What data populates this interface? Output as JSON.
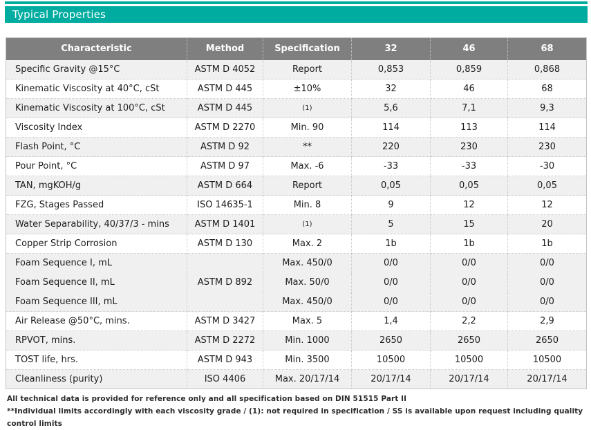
{
  "title": "Typical Properties",
  "colors": {
    "accent": "#00ACA0",
    "header_bg": "#7F7F7F",
    "shaded_row_bg": "#F0F0F0",
    "border": "#C9C9C9"
  },
  "table": {
    "columns": [
      "Characteristic",
      "Method",
      "Specification",
      "32",
      "46",
      "68"
    ],
    "rows": [
      {
        "characteristic": "Specific Gravity @15°C",
        "method": "ASTM D 4052",
        "specification": "Report",
        "values": [
          "0,853",
          "0,859",
          "0,868"
        ],
        "shaded": true
      },
      {
        "characteristic": "Kinematic Viscosity at 40°C, cSt",
        "method": "ASTM D 445",
        "specification": "±10%",
        "values": [
          "32",
          "46",
          "68"
        ],
        "shaded": false
      },
      {
        "characteristic": "Kinematic Viscosity at 100°C, cSt",
        "method": "ASTM D 445",
        "specification": "(1)",
        "spec_small": true,
        "values": [
          "5,6",
          "7,1",
          "9,3"
        ],
        "shaded": true
      },
      {
        "characteristic": "Viscosity Index",
        "method": "ASTM D 2270",
        "specification": "Min. 90",
        "values": [
          "114",
          "113",
          "114"
        ],
        "shaded": false
      },
      {
        "characteristic": "Flash Point, °C",
        "method": "ASTM D 92",
        "specification": "**",
        "values": [
          "220",
          "230",
          "230"
        ],
        "shaded": true
      },
      {
        "characteristic": "Pour Point, °C",
        "method": "ASTM D 97",
        "specification": "Max. -6",
        "values": [
          "-33",
          "-33",
          "-30"
        ],
        "shaded": false
      },
      {
        "characteristic": "TAN, mgKOH/g",
        "method": "ASTM D 664",
        "specification": "Report",
        "values": [
          "0,05",
          "0,05",
          "0,05"
        ],
        "shaded": true
      },
      {
        "characteristic": "FZG, Stages Passed",
        "method": "ISO 14635-1",
        "specification": "Min. 8",
        "values": [
          "9",
          "12",
          "12"
        ],
        "shaded": false
      },
      {
        "characteristic": "Water Separability, 40/37/3 - mins",
        "method": "ASTM D 1401",
        "specification": "(1)",
        "spec_small": true,
        "values": [
          "5",
          "15",
          "20"
        ],
        "shaded": true
      },
      {
        "characteristic": "Copper Strip Corrosion",
        "method": "ASTM D 130",
        "specification": "Max. 2",
        "values": [
          "1b",
          "1b",
          "1b"
        ],
        "shaded": false
      },
      {
        "characteristic": "Foam Sequence I, mL",
        "method": "ASTM D 892",
        "method_rowspan": 3,
        "specification": "Max. 450/0",
        "values": [
          "0/0",
          "0/0",
          "0/0"
        ],
        "shaded": true,
        "group": "foam"
      },
      {
        "characteristic": "Foam Sequence II, mL",
        "specification": "Max. 50/0",
        "values": [
          "0/0",
          "0/0",
          "0/0"
        ],
        "shaded": true,
        "group": "foam"
      },
      {
        "characteristic": "Foam Sequence III, mL",
        "specification": "Max. 450/0",
        "values": [
          "0/0",
          "0/0",
          "0/0"
        ],
        "shaded": true,
        "group": "foam"
      },
      {
        "characteristic": "Air Release @50°C, mins.",
        "method": "ASTM D 3427",
        "specification": "Max. 5",
        "values": [
          "1,4",
          "2,2",
          "2,9"
        ],
        "shaded": false
      },
      {
        "characteristic": "RPVOT, mins.",
        "method": "ASTM D 2272",
        "specification": "Min. 1000",
        "values": [
          "2650",
          "2650",
          "2650"
        ],
        "shaded": true
      },
      {
        "characteristic": "TOST life, hrs.",
        "method": "ASTM D 943",
        "specification": "Min. 3500",
        "values": [
          "10500",
          "10500",
          "10500"
        ],
        "shaded": false
      },
      {
        "characteristic": "Cleanliness (purity)",
        "method": "ISO 4406",
        "specification": "Max. 20/17/14",
        "values": [
          "20/17/14",
          "20/17/14",
          "20/17/14"
        ],
        "shaded": true
      }
    ]
  },
  "footnotes": [
    "All technical data is provided for reference only and all specification based on DIN 51515 Part II",
    "**Individual limits accordingly with each viscosity grade / (1): not required in specification / SS is available upon request including quality control limits"
  ]
}
